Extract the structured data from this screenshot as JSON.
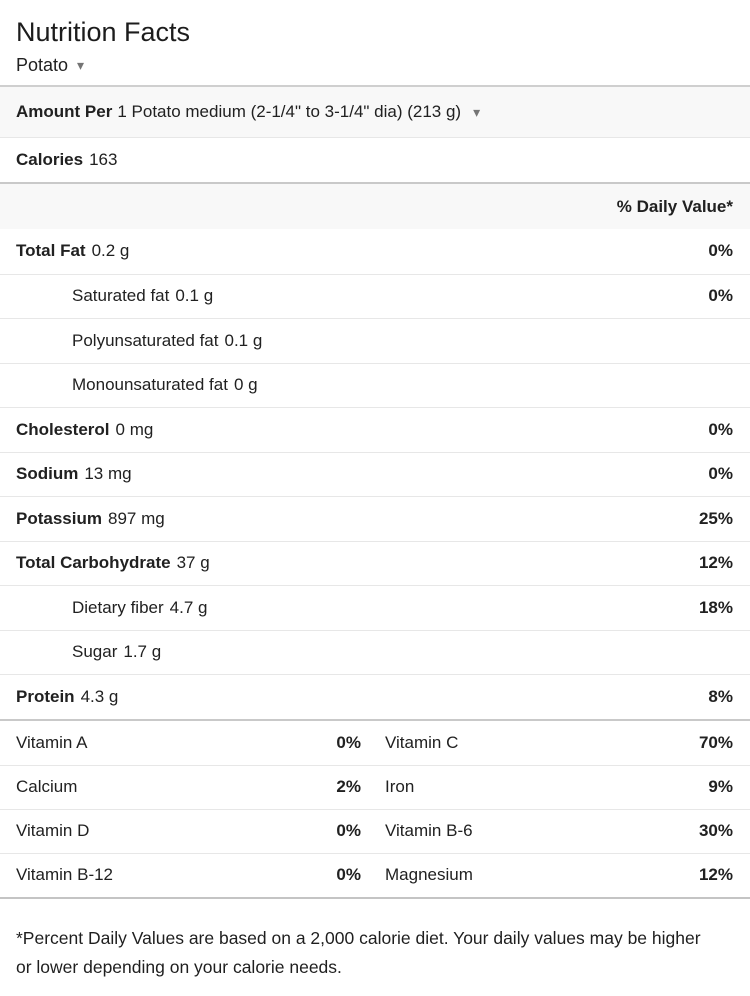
{
  "header": {
    "title": "Nutrition Facts",
    "food": "Potato"
  },
  "icons": {
    "dropdown": "▾"
  },
  "amount": {
    "prefix": "Amount Per",
    "serving": "1 Potato medium (2-1/4\" to 3-1/4\" dia) (213 g)"
  },
  "calories": {
    "label": "Calories",
    "value": "163"
  },
  "daily_value_header": "% Daily Value*",
  "nutrients": [
    {
      "label": "Total Fat",
      "amount": "0.2 g",
      "pct": "0%",
      "style": "bold"
    },
    {
      "label": "Saturated fat",
      "amount": "0.1 g",
      "pct": "0%",
      "style": "sub"
    },
    {
      "label": "Polyunsaturated fat",
      "amount": "0.1 g",
      "pct": "",
      "style": "sub"
    },
    {
      "label": "Monounsaturated fat",
      "amount": "0 g",
      "pct": "",
      "style": "sub"
    },
    {
      "label": "Cholesterol",
      "amount": "0 mg",
      "pct": "0%",
      "style": "bold"
    },
    {
      "label": "Sodium",
      "amount": "13 mg",
      "pct": "0%",
      "style": "bold"
    },
    {
      "label": "Potassium",
      "amount": "897 mg",
      "pct": "25%",
      "style": "bold"
    },
    {
      "label": "Total Carbohydrate",
      "amount": "37 g",
      "pct": "12%",
      "style": "bold"
    },
    {
      "label": "Dietary fiber",
      "amount": "4.7 g",
      "pct": "18%",
      "style": "sub"
    },
    {
      "label": "Sugar",
      "amount": "1.7 g",
      "pct": "",
      "style": "sub"
    },
    {
      "label": "Protein",
      "amount": "4.3 g",
      "pct": "8%",
      "style": "bold"
    }
  ],
  "vitamins": [
    {
      "left": {
        "name": "Vitamin A",
        "pct": "0%"
      },
      "right": {
        "name": "Vitamin C",
        "pct": "70%"
      }
    },
    {
      "left": {
        "name": "Calcium",
        "pct": "2%"
      },
      "right": {
        "name": "Iron",
        "pct": "9%"
      }
    },
    {
      "left": {
        "name": "Vitamin D",
        "pct": "0%"
      },
      "right": {
        "name": "Vitamin B-6",
        "pct": "30%"
      }
    },
    {
      "left": {
        "name": "Vitamin B-12",
        "pct": "0%"
      },
      "right": {
        "name": "Magnesium",
        "pct": "12%"
      }
    }
  ],
  "footnote": "*Percent Daily Values are based on a 2,000 calorie diet. Your daily values may be higher or lower depending on your calorie needs."
}
